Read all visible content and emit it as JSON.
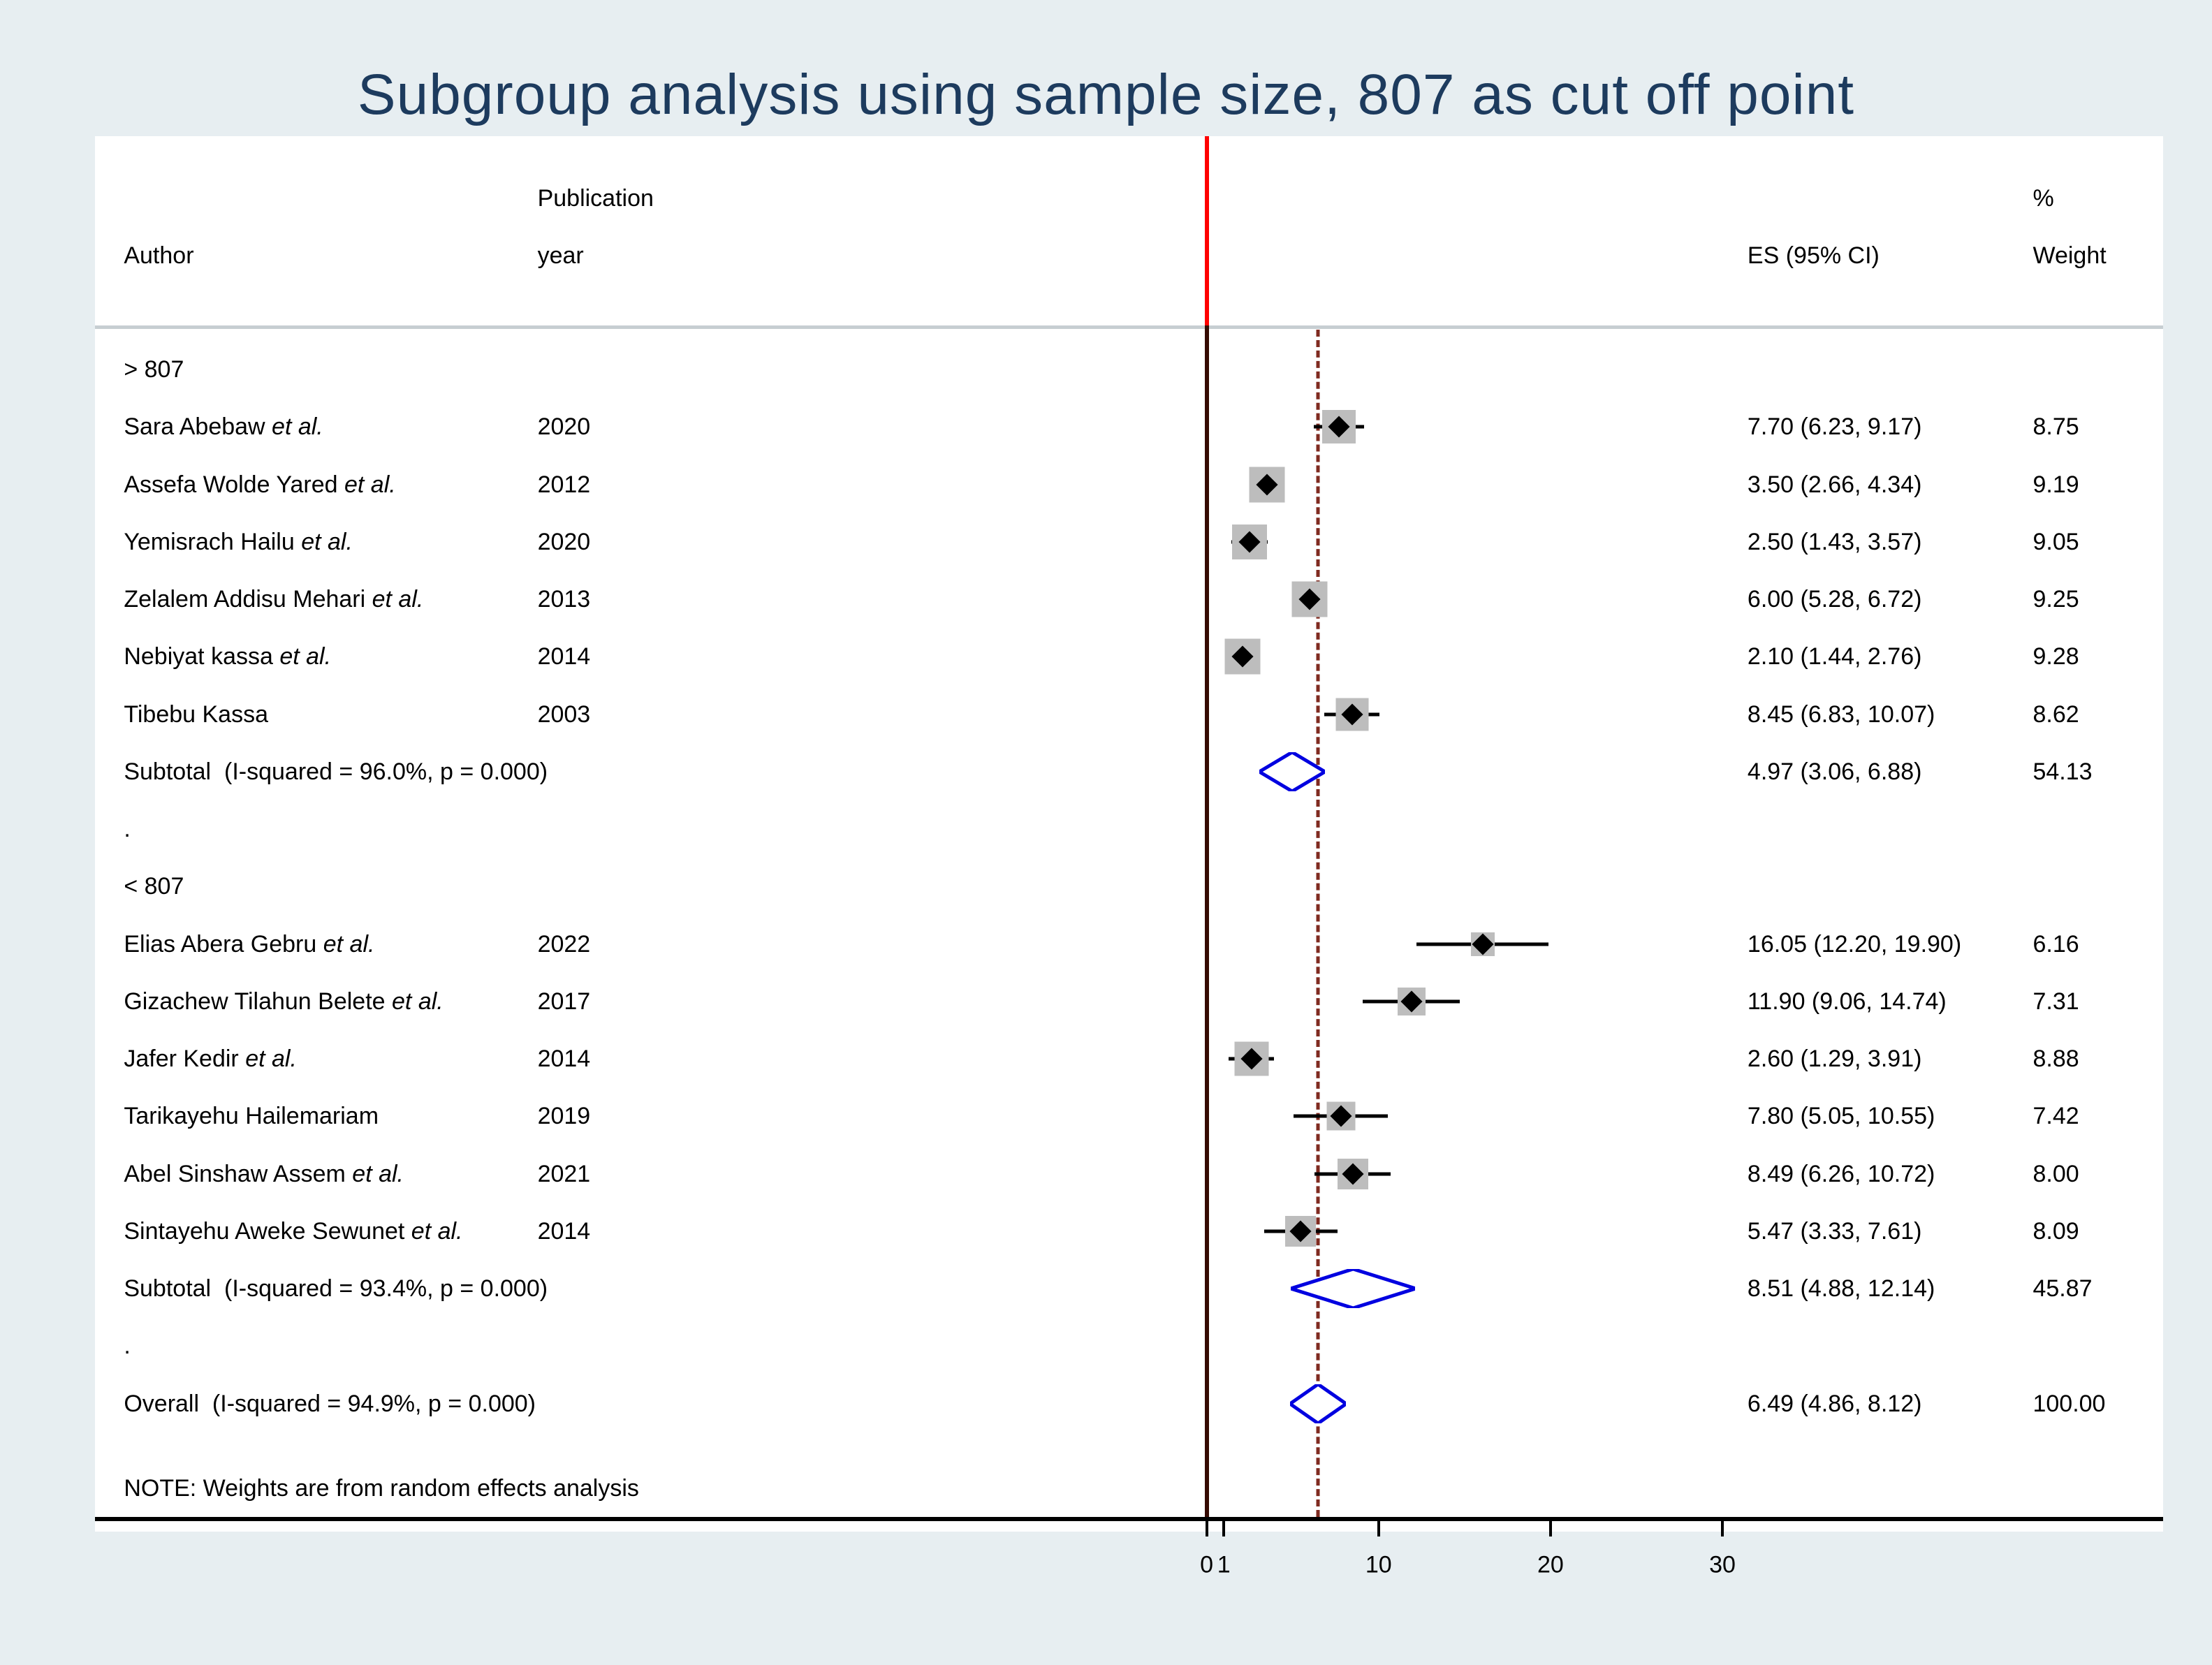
{
  "title": "Subgroup analysis using sample size, 807 as cut off point",
  "header": {
    "publication_top": "Publication",
    "author": "Author",
    "year": "year",
    "es": "ES (95% CI)",
    "percent": "%",
    "weight": "Weight"
  },
  "note": "NOTE: Weights are from random effects analysis",
  "colors": {
    "background": "#e7eef1",
    "panel": "#ffffff",
    "title_text": "#1d3b5e",
    "null_line_top": "#ff0000",
    "null_line": "#350a02",
    "dashed_line": "#7f2a20",
    "ci_line": "#000000",
    "marker_fill": "#bdbdbd",
    "pooled_diamond": "#0000e0"
  },
  "chart_data": {
    "type": "forest",
    "x_axis": {
      "tick_values": [
        0,
        1,
        10,
        20,
        30
      ],
      "tick_labels": [
        "0",
        "1",
        "10",
        "20",
        "30"
      ]
    },
    "null_line_x": 0,
    "overall_dashed_x": 6.49,
    "groups": [
      {
        "label": "> 807",
        "studies": [
          {
            "author": "Sara Abebaw et al.",
            "year": "2020",
            "es": 7.7,
            "lo": 6.23,
            "hi": 9.17,
            "es_text": "7.70 (6.23, 9.17)",
            "weight": "8.75"
          },
          {
            "author": "Assefa Wolde Yared et al.",
            "year": "2012",
            "es": 3.5,
            "lo": 2.66,
            "hi": 4.34,
            "es_text": "3.50 (2.66, 4.34)",
            "weight": "9.19"
          },
          {
            "author": "Yemisrach Hailu et al.",
            "year": "2020",
            "es": 2.5,
            "lo": 1.43,
            "hi": 3.57,
            "es_text": "2.50 (1.43, 3.57)",
            "weight": "9.05"
          },
          {
            "author": "Zelalem Addisu Mehari et al.",
            "year": "2013",
            "es": 6.0,
            "lo": 5.28,
            "hi": 6.72,
            "es_text": "6.00 (5.28, 6.72)",
            "weight": "9.25"
          },
          {
            "author": "Nebiyat kassa et al.",
            "year": "2014",
            "es": 2.1,
            "lo": 1.44,
            "hi": 2.76,
            "es_text": "2.10 (1.44, 2.76)",
            "weight": "9.28"
          },
          {
            "author": "Tibebu Kassa",
            "year": "2003",
            "es": 8.45,
            "lo": 6.83,
            "hi": 10.07,
            "es_text": "8.45 (6.83, 10.07)",
            "weight": "8.62"
          }
        ],
        "subtotal": {
          "label": "Subtotal  (I-squared = 96.0%, p = 0.000)",
          "es": 4.97,
          "lo": 3.06,
          "hi": 6.88,
          "es_text": "4.97 (3.06, 6.88)",
          "weight": "54.13"
        }
      },
      {
        "label": "< 807",
        "studies": [
          {
            "author": "Elias Abera Gebru et al.",
            "year": "2022",
            "es": 16.05,
            "lo": 12.2,
            "hi": 19.9,
            "es_text": "16.05 (12.20, 19.90)",
            "weight": "6.16"
          },
          {
            "author": "Gizachew Tilahun Belete et al.",
            "year": "2017",
            "es": 11.9,
            "lo": 9.06,
            "hi": 14.74,
            "es_text": "11.90 (9.06, 14.74)",
            "weight": "7.31"
          },
          {
            "author": "Jafer Kedir et al.",
            "year": "2014",
            "es": 2.6,
            "lo": 1.29,
            "hi": 3.91,
            "es_text": "2.60 (1.29, 3.91)",
            "weight": "8.88"
          },
          {
            "author": "Tarikayehu Hailemariam",
            "year": "2019",
            "es": 7.8,
            "lo": 5.05,
            "hi": 10.55,
            "es_text": "7.80 (5.05, 10.55)",
            "weight": "7.42"
          },
          {
            "author": "Abel Sinshaw Assem et al.",
            "year": "2021",
            "es": 8.49,
            "lo": 6.26,
            "hi": 10.72,
            "es_text": "8.49 (6.26, 10.72)",
            "weight": "8.00"
          },
          {
            "author": "Sintayehu Aweke Sewunet et al.",
            "year": "2014",
            "es": 5.47,
            "lo": 3.33,
            "hi": 7.61,
            "es_text": "5.47 (3.33, 7.61)",
            "weight": "8.09"
          }
        ],
        "subtotal": {
          "label": "Subtotal  (I-squared = 93.4%, p = 0.000)",
          "es": 8.51,
          "lo": 4.88,
          "hi": 12.14,
          "es_text": "8.51 (4.88, 12.14)",
          "weight": "45.87"
        }
      }
    ],
    "overall": {
      "label": "Overall  (I-squared = 94.9%, p = 0.000)",
      "es": 6.49,
      "lo": 4.86,
      "hi": 8.12,
      "es_text": "6.49 (4.86, 8.12)",
      "weight": "100.00"
    }
  }
}
